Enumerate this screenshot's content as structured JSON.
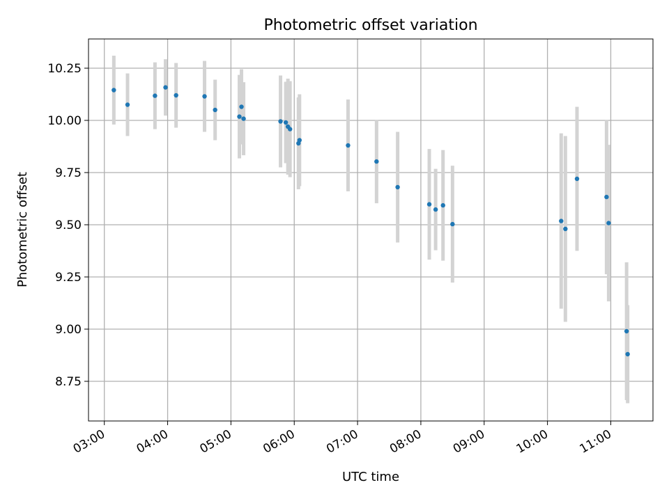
{
  "chart_data": {
    "type": "scatter",
    "title": "Photometric offset variation",
    "xlabel": "UTC time",
    "ylabel": "Photometric offset",
    "x_tick_labels": [
      "03:00",
      "04:00",
      "05:00",
      "06:00",
      "07:00",
      "08:00",
      "09:00",
      "10:00",
      "11:00"
    ],
    "y_tick_labels": [
      "8.75",
      "9.00",
      "9.25",
      "9.50",
      "9.75",
      "10.00",
      "10.25"
    ],
    "xlim": [
      "02:45",
      "11:40"
    ],
    "ylim": [
      8.56,
      10.39
    ],
    "grid": true,
    "x_tick_label_rotation": "30 degrees",
    "points": [
      {
        "x": "03:09",
        "y": 10.145,
        "err": 0.165
      },
      {
        "x": "03:22",
        "y": 10.075,
        "err": 0.15
      },
      {
        "x": "03:48",
        "y": 10.118,
        "err": 0.16
      },
      {
        "x": "03:58",
        "y": 10.158,
        "err": 0.135
      },
      {
        "x": "04:08",
        "y": 10.12,
        "err": 0.155
      },
      {
        "x": "04:35",
        "y": 10.115,
        "err": 0.17
      },
      {
        "x": "04:45",
        "y": 10.05,
        "err": 0.145
      },
      {
        "x": "05:08",
        "y": 10.018,
        "err": 0.2
      },
      {
        "x": "05:10",
        "y": 10.065,
        "err": 0.18
      },
      {
        "x": "05:12",
        "y": 10.008,
        "err": 0.175
      },
      {
        "x": "05:47",
        "y": 9.995,
        "err": 0.22
      },
      {
        "x": "05:52",
        "y": 9.99,
        "err": 0.195
      },
      {
        "x": "05:54",
        "y": 9.97,
        "err": 0.23
      },
      {
        "x": "05:56",
        "y": 9.958,
        "err": 0.23
      },
      {
        "x": "06:04",
        "y": 9.89,
        "err": 0.22
      },
      {
        "x": "06:05",
        "y": 9.905,
        "err": 0.22
      },
      {
        "x": "06:51",
        "y": 9.88,
        "err": 0.22
      },
      {
        "x": "07:18",
        "y": 9.803,
        "err": 0.2
      },
      {
        "x": "07:38",
        "y": 9.68,
        "err": 0.265
      },
      {
        "x": "08:08",
        "y": 9.598,
        "err": 0.265
      },
      {
        "x": "08:14",
        "y": 9.573,
        "err": 0.195
      },
      {
        "x": "08:21",
        "y": 9.593,
        "err": 0.265
      },
      {
        "x": "08:30",
        "y": 9.503,
        "err": 0.28
      },
      {
        "x": "10:13",
        "y": 9.518,
        "err": 0.42
      },
      {
        "x": "10:17",
        "y": 9.48,
        "err": 0.445
      },
      {
        "x": "10:28",
        "y": 9.72,
        "err": 0.345
      },
      {
        "x": "10:56",
        "y": 9.633,
        "err": 0.37
      },
      {
        "x": "10:58",
        "y": 9.508,
        "err": 0.375
      },
      {
        "x": "11:15",
        "y": 8.99,
        "err": 0.33
      },
      {
        "x": "11:16",
        "y": 8.88,
        "err": 0.235
      }
    ],
    "colors": {
      "marker": "#1f77b4",
      "errorbar": "#d3d3d3",
      "grid": "#b0b0b0",
      "axes": "#000000"
    }
  }
}
